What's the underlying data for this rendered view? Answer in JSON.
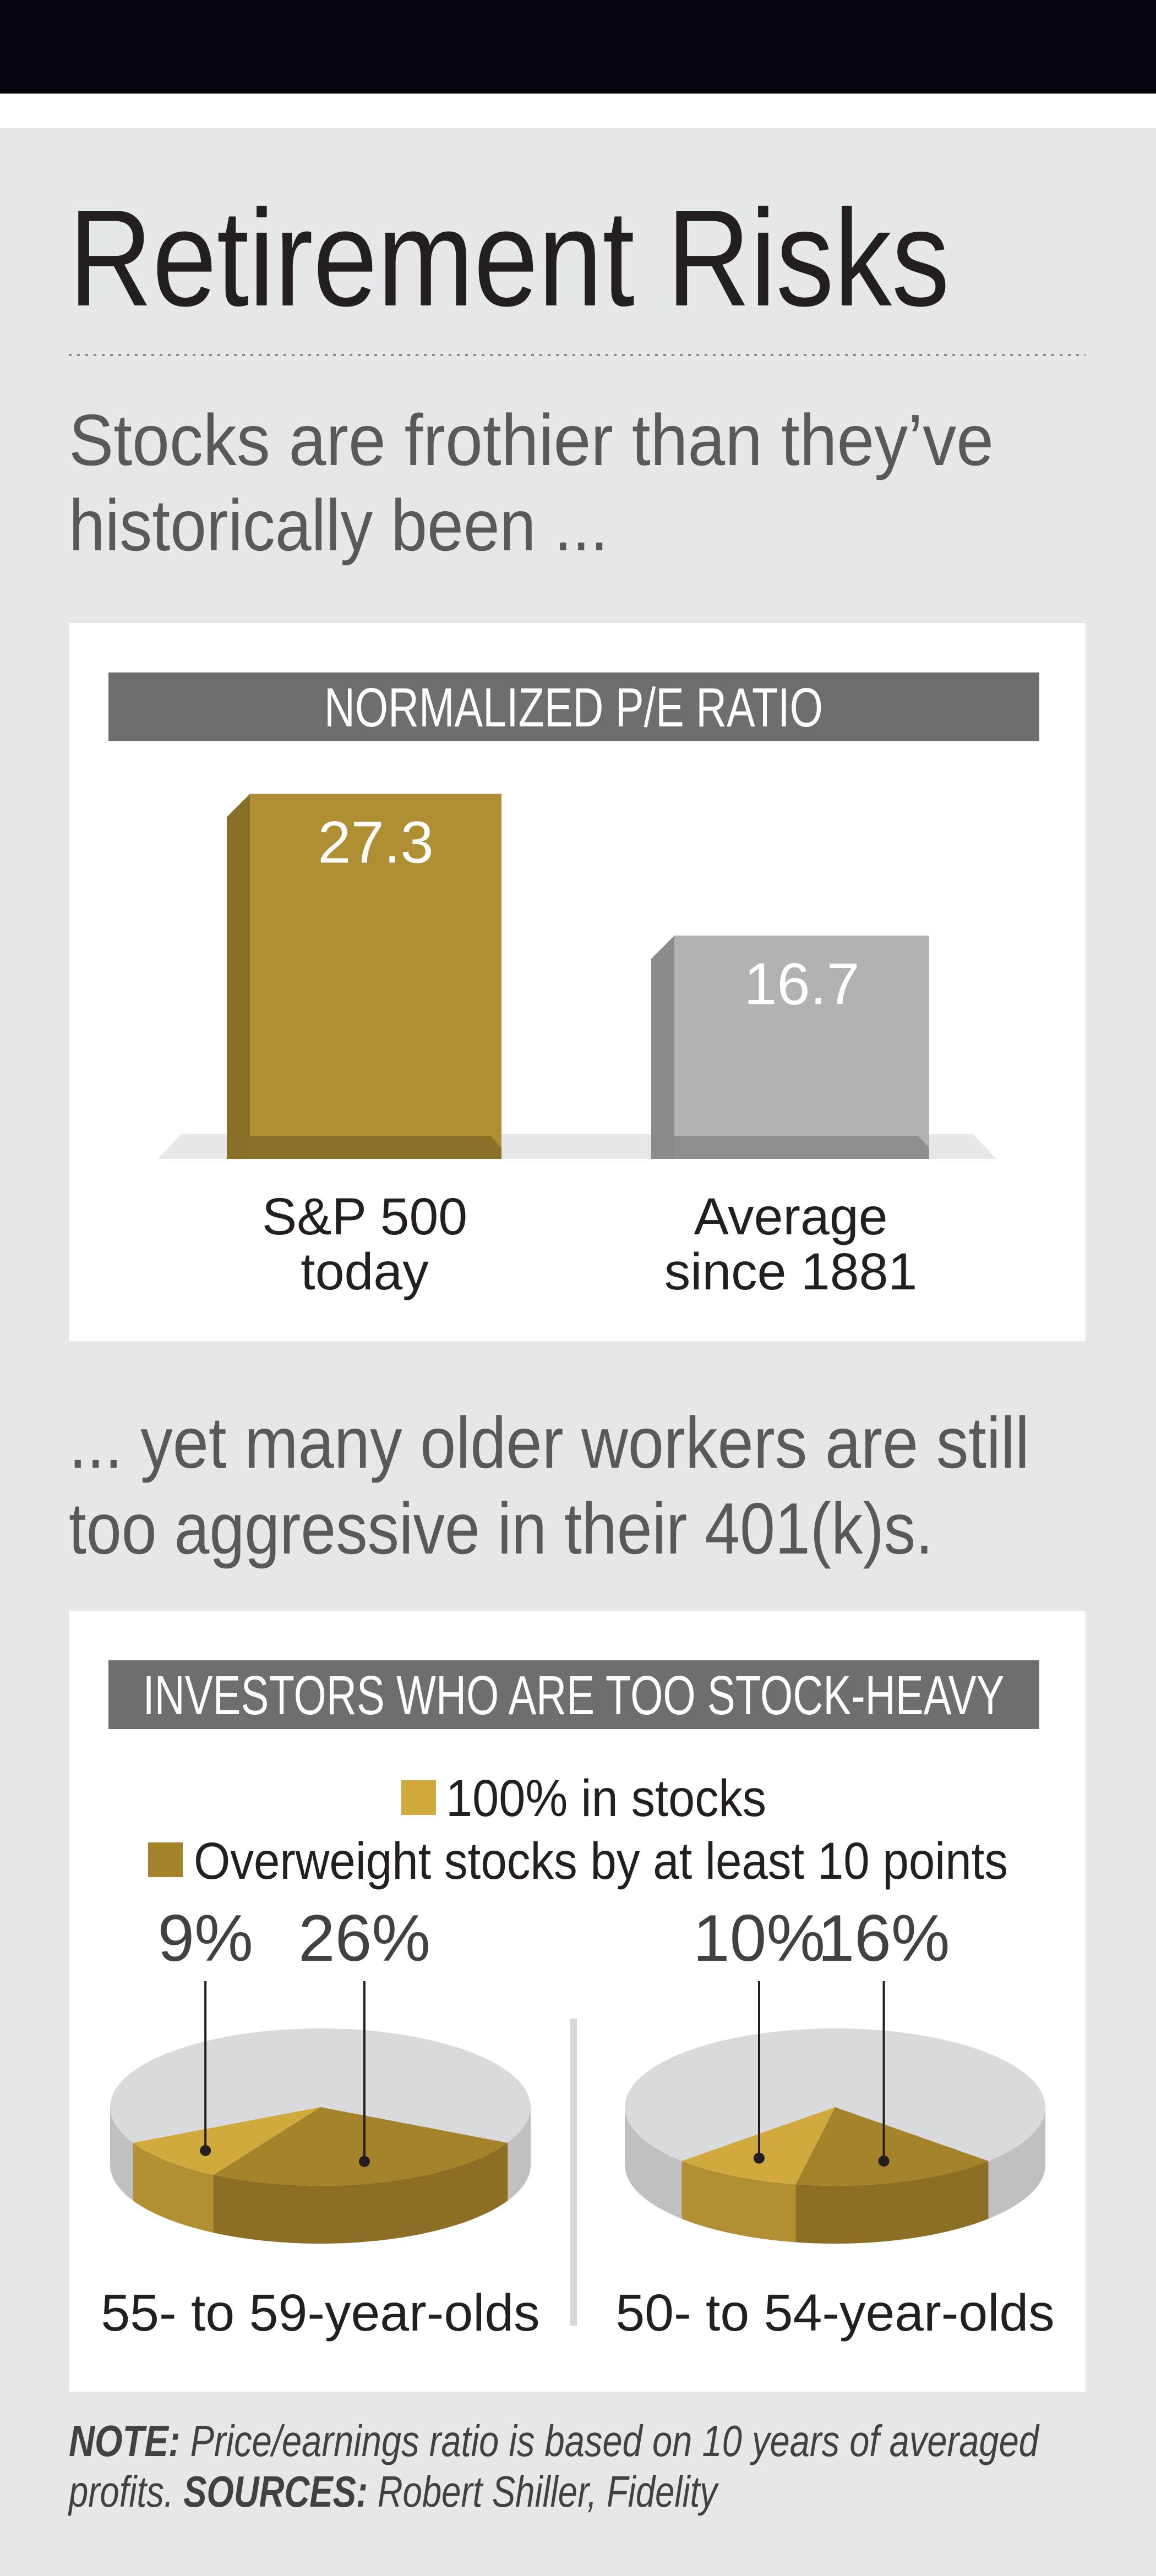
{
  "title": "Retirement Risks",
  "subtitle_lines": [
    "Stocks are frothier than they’ve",
    "historically been ..."
  ],
  "chart_data": [
    {
      "type": "bar",
      "title": "NORMALIZED P/E RATIO",
      "categories": [
        "S&P 500\ntoday",
        "Average\nsince 1881"
      ],
      "values": [
        27.3,
        16.7
      ],
      "colors": [
        "#b08f34",
        "#b1b2b4"
      ]
    },
    {
      "type": "pie",
      "title": "INVESTORS WHO ARE TOO STOCK-HEAVY",
      "categories": [
        "55- to 59-year-olds",
        "50- to 54-year-olds"
      ],
      "series": [
        {
          "name": "100% in stocks",
          "color": "#d2a93d",
          "values": [
            9,
            10
          ],
          "value_labels": [
            "9%",
            "10%"
          ]
        },
        {
          "name": "Overweight stocks by at least 10 points",
          "color": "#a5832b",
          "values": [
            26,
            16
          ],
          "value_labels": [
            "26%",
            "16%"
          ]
        }
      ]
    }
  ],
  "subtitle2_lines": [
    "... yet many older workers are still",
    "too aggressive in their 401(k)s."
  ],
  "note": {
    "note_label": "NOTE:",
    "note_lines": [
      "Price/earnings ratio is based on 10 years of averaged",
      "profits."
    ],
    "sources_label": "SOURCES:",
    "sources_text": "Robert Shiller, Fidelity"
  }
}
